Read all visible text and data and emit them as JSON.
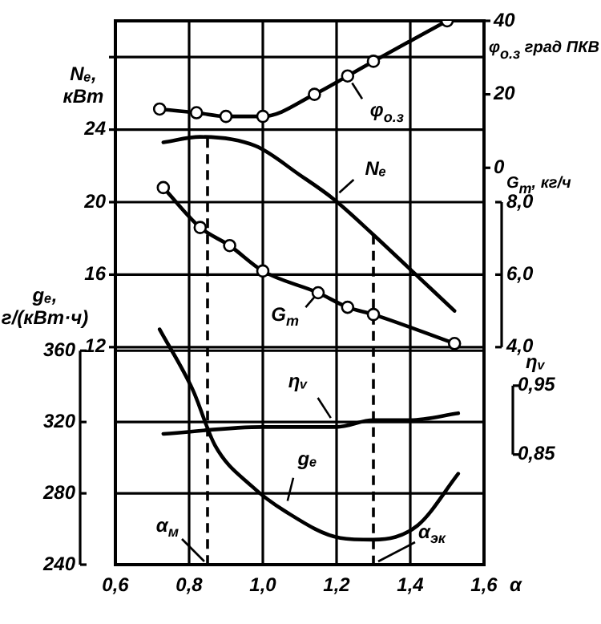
{
  "chart_data": [
    {
      "type": "line",
      "xlabel": "α",
      "ylabel": "Nₑ, кВт",
      "y2label": "gₑ, г/(кВт·ч)",
      "y3label": "φ$_{о.з}$ град ПКВ",
      "xlim": [
        0.6,
        1.6
      ],
      "xticks": [
        {
          "value": 0.6,
          "label": "0,6"
        },
        {
          "value": 0.8,
          "label": "0,8"
        },
        {
          "value": 1.0,
          "label": "1,0"
        },
        {
          "value": 1.2,
          "label": "1,2"
        },
        {
          "value": 1.4,
          "label": "1,4"
        },
        {
          "value": 1.6,
          "label": "1,6"
        }
      ],
      "ylim": [
        0,
        30
      ],
      "yticks": [
        12,
        16,
        20,
        24,
        {
          "value": 28,
          "label": null
        }
      ],
      "y2lim": [
        240,
        545
      ],
      "y2ticks": [
        240,
        280,
        320,
        360
      ],
      "y3lim": [
        -108,
        40
      ],
      "y3ticks": [
        0,
        20,
        40
      ],
      "grid": true,
      "line_style": "solid",
      "ref_lines": [
        {
          "axis": "x",
          "value": 0.85,
          "label": "α$_{м}$",
          "line_style": "dashed",
          "color": "#000000"
        },
        {
          "axis": "x",
          "value": 1.3,
          "label": "α$_{эк}$",
          "line_style": "dashed",
          "color": "#000000"
        }
      ],
      "series": [
        {
          "name": "φ$_{о.з}$",
          "axis": "y3",
          "marker": "circle",
          "color": "#000000",
          "x": [
            0.72,
            0.82,
            0.9,
            1.0,
            1.14,
            1.23,
            1.3,
            1.5
          ],
          "values": [
            16,
            15,
            14,
            14,
            20,
            25,
            29,
            40
          ]
        },
        {
          "name": "Nₑ",
          "marker": "none",
          "color": "#000000",
          "x": [
            0.73,
            0.83,
            0.98,
            1.1,
            1.19,
            1.3,
            1.41,
            1.52
          ],
          "values": [
            23.3,
            23.6,
            23.1,
            21.5,
            20.2,
            18.2,
            16.1,
            14.0
          ]
        },
        {
          "name": "gₑ",
          "axis": "y2",
          "marker": "none",
          "color": "#000000",
          "x": [
            0.72,
            0.81,
            0.87,
            0.97,
            1.06,
            1.21,
            1.3,
            1.42,
            1.53
          ],
          "values": [
            372,
            338,
            307,
            284,
            270,
            255,
            254,
            262,
            291
          ]
        }
      ]
    },
    {
      "type": "line",
      "ylabel": "G$_{т}$, кг/ч",
      "xlim": [
        0.6,
        1.6
      ],
      "ylim": [
        -2,
        13
      ],
      "yticks": [
        {
          "value": 4,
          "label": "4,0"
        },
        {
          "value": 6,
          "label": "6,0"
        },
        {
          "value": 8,
          "label": "8,0"
        }
      ],
      "tick_labels": "y",
      "line_style": "solid",
      "series": [
        {
          "name": "G$_{т}$",
          "marker": "circle",
          "color": "#000000",
          "x": [
            0.73,
            0.83,
            0.91,
            1.0,
            1.15,
            1.23,
            1.3,
            1.52
          ],
          "values": [
            8.4,
            7.3,
            6.8,
            6.1,
            5.5,
            5.1,
            4.9,
            4.1
          ]
        }
      ]
    },
    {
      "type": "line",
      "ylabel": "ηᵥ",
      "xlim": [
        0.6,
        1.6
      ],
      "ylim": [
        0.69,
        1.48
      ],
      "yticks": [
        {
          "value": 0.85,
          "label": "0,85"
        },
        {
          "value": 0.95,
          "label": "0,95"
        }
      ],
      "tick_labels": "y",
      "line_style": "solid",
      "series": [
        {
          "name": "ηᵥ",
          "marker": "none",
          "color": "#000000",
          "x": [
            0.73,
            1.0,
            1.2,
            1.3,
            1.4,
            1.53
          ],
          "values": [
            0.88,
            0.89,
            0.89,
            0.9,
            0.9,
            0.91
          ]
        }
      ]
    }
  ]
}
